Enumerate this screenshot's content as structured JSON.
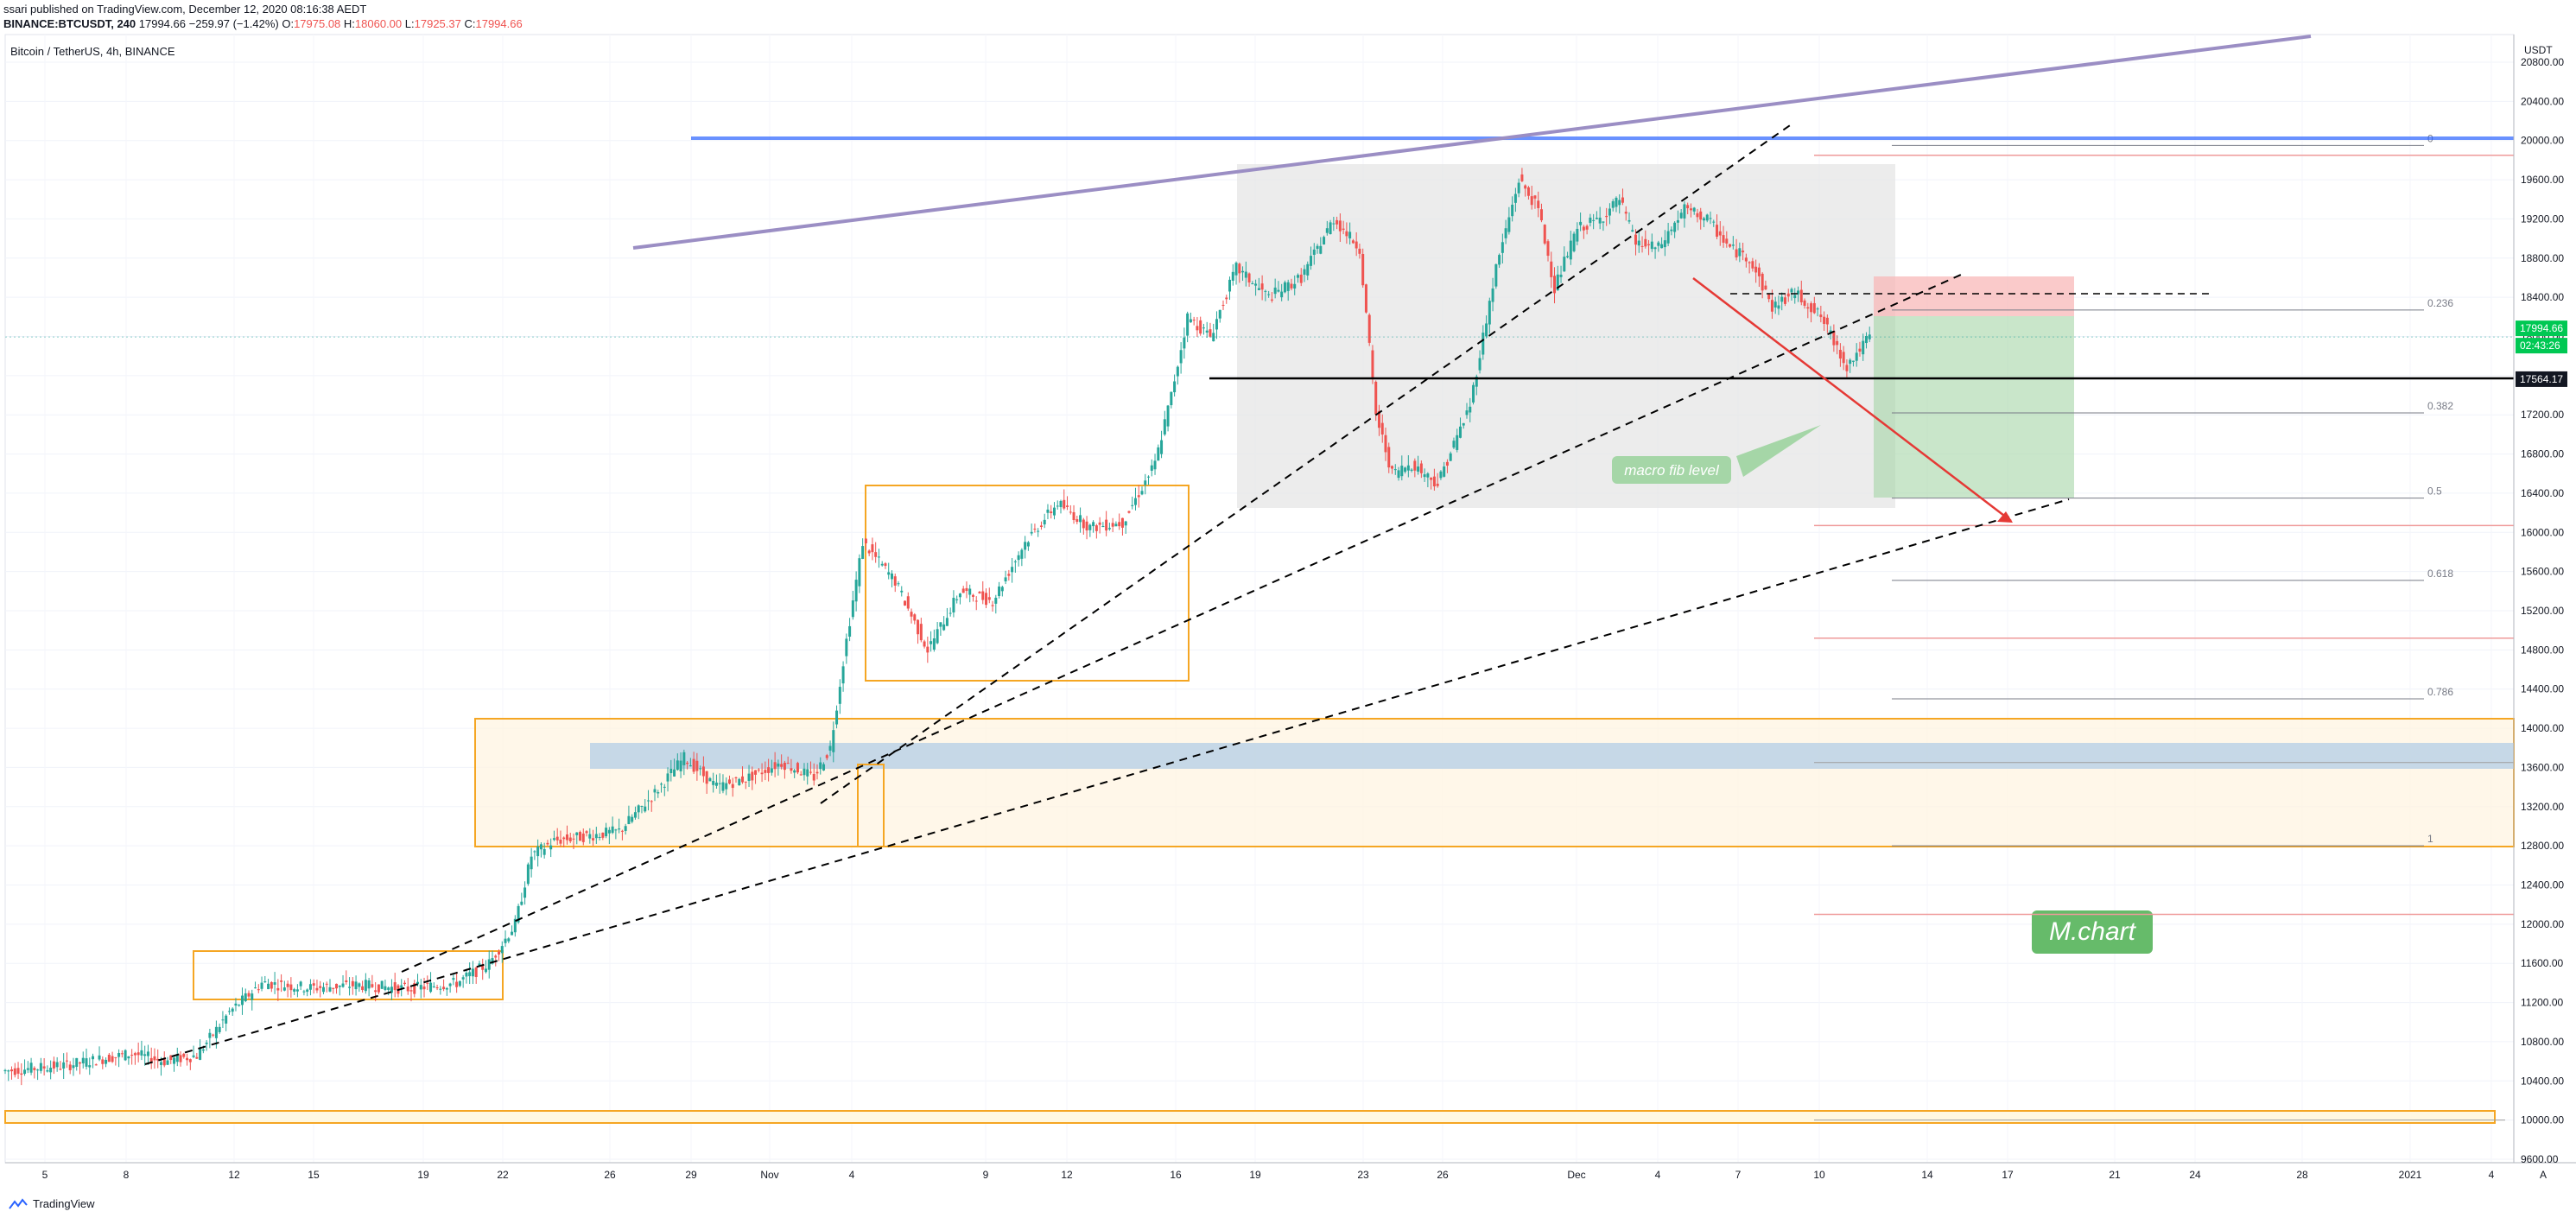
{
  "header": {
    "publisher": "ssari published on TradingView.com, December 12, 2020 08:16:38 AEDT",
    "symbol": "BINANCE:BTCUSDT, 240",
    "last": "17994.66",
    "change": "−259.97 (−1.42%)",
    "open_label": "O:",
    "open": "17975.08",
    "high_label": "H:",
    "high": "18060.00",
    "low_label": "L:",
    "low": "17925.37",
    "close_label": "C:",
    "close": "17994.66"
  },
  "legend_title": "Bitcoin / TetherUS, 4h, BINANCE",
  "currency": "USDT",
  "footer": {
    "brand": "TradingView"
  },
  "colors": {
    "up": "#26a69a",
    "down": "#ef5350",
    "orange": "#f5a623",
    "blue_line": "#2962ff",
    "purple": "#9b8ec4",
    "green_zone": "#a5d6a7",
    "red_zone": "#f8bbbb",
    "grey_box": "#e0e0e0"
  },
  "chart_data": {
    "type": "candlestick",
    "x_ticks": [
      "5",
      "8",
      "12",
      "15",
      "19",
      "22",
      "26",
      "29",
      "Nov",
      "4",
      "9",
      "12",
      "16",
      "19",
      "23",
      "26",
      "Dec",
      "4",
      "7",
      "10",
      "14",
      "17",
      "21",
      "24",
      "28",
      "2021",
      "4"
    ],
    "y_ticks": [
      9600,
      10000,
      10400,
      10800,
      11200,
      11600,
      12000,
      12400,
      12800,
      13200,
      13600,
      14000,
      14400,
      14800,
      15200,
      15600,
      16000,
      16400,
      16800,
      17200,
      17600,
      18000,
      18400,
      18800,
      19200,
      19600,
      20000,
      20400,
      20800
    ],
    "ylim": [
      9550,
      21000
    ],
    "price_badges": [
      {
        "value": "17994.66",
        "color": "#00c853"
      },
      {
        "value": "02:43:26",
        "color": "#00c853"
      },
      {
        "value": "17564.17",
        "color": "#131722"
      }
    ],
    "fib_levels": [
      {
        "label": "0",
        "price": 19950
      },
      {
        "label": "0.236",
        "price": 18270
      },
      {
        "label": "0.382",
        "price": 17220
      },
      {
        "label": "0.5",
        "price": 16350
      },
      {
        "label": "0.618",
        "price": 15510
      },
      {
        "label": "0.786",
        "price": 14300
      },
      {
        "label": "1",
        "price": 12800
      }
    ],
    "annotations": [
      {
        "text": "macro fib level"
      },
      {
        "text": "M.chart"
      }
    ],
    "price_path": [
      [
        0,
        10500
      ],
      [
        20,
        10560
      ],
      [
        40,
        10680
      ],
      [
        50,
        10600
      ],
      [
        60,
        10660
      ],
      [
        70,
        11100
      ],
      [
        80,
        11400
      ],
      [
        95,
        11350
      ],
      [
        110,
        11380
      ],
      [
        125,
        11340
      ],
      [
        140,
        11400
      ],
      [
        150,
        11600
      ],
      [
        158,
        12000
      ],
      [
        163,
        12700
      ],
      [
        170,
        12850
      ],
      [
        180,
        12900
      ],
      [
        190,
        12950
      ],
      [
        200,
        13300
      ],
      [
        210,
        13700
      ],
      [
        220,
        13400
      ],
      [
        230,
        13500
      ],
      [
        240,
        13650
      ],
      [
        250,
        13500
      ],
      [
        255,
        13800
      ],
      [
        260,
        14900
      ],
      [
        265,
        15900
      ],
      [
        275,
        15500
      ],
      [
        285,
        14800
      ],
      [
        295,
        15400
      ],
      [
        305,
        15300
      ],
      [
        315,
        15900
      ],
      [
        325,
        16300
      ],
      [
        335,
        16050
      ],
      [
        345,
        16100
      ],
      [
        355,
        16700
      ],
      [
        360,
        17400
      ],
      [
        365,
        18200
      ],
      [
        372,
        18000
      ],
      [
        380,
        18700
      ],
      [
        390,
        18400
      ],
      [
        400,
        18600
      ],
      [
        410,
        19200
      ],
      [
        418,
        18900
      ],
      [
        423,
        17200
      ],
      [
        428,
        16600
      ],
      [
        434,
        16700
      ],
      [
        442,
        16500
      ],
      [
        452,
        17300
      ],
      [
        460,
        18700
      ],
      [
        467,
        19600
      ],
      [
        473,
        19300
      ],
      [
        478,
        18500
      ],
      [
        485,
        19100
      ],
      [
        492,
        19200
      ],
      [
        498,
        19400
      ],
      [
        503,
        18950
      ],
      [
        510,
        18900
      ],
      [
        518,
        19300
      ],
      [
        525,
        19200
      ],
      [
        532,
        18900
      ],
      [
        538,
        18800
      ],
      [
        545,
        18300
      ],
      [
        552,
        18450
      ],
      [
        560,
        18200
      ],
      [
        568,
        17700
      ],
      [
        575,
        17995
      ]
    ]
  }
}
